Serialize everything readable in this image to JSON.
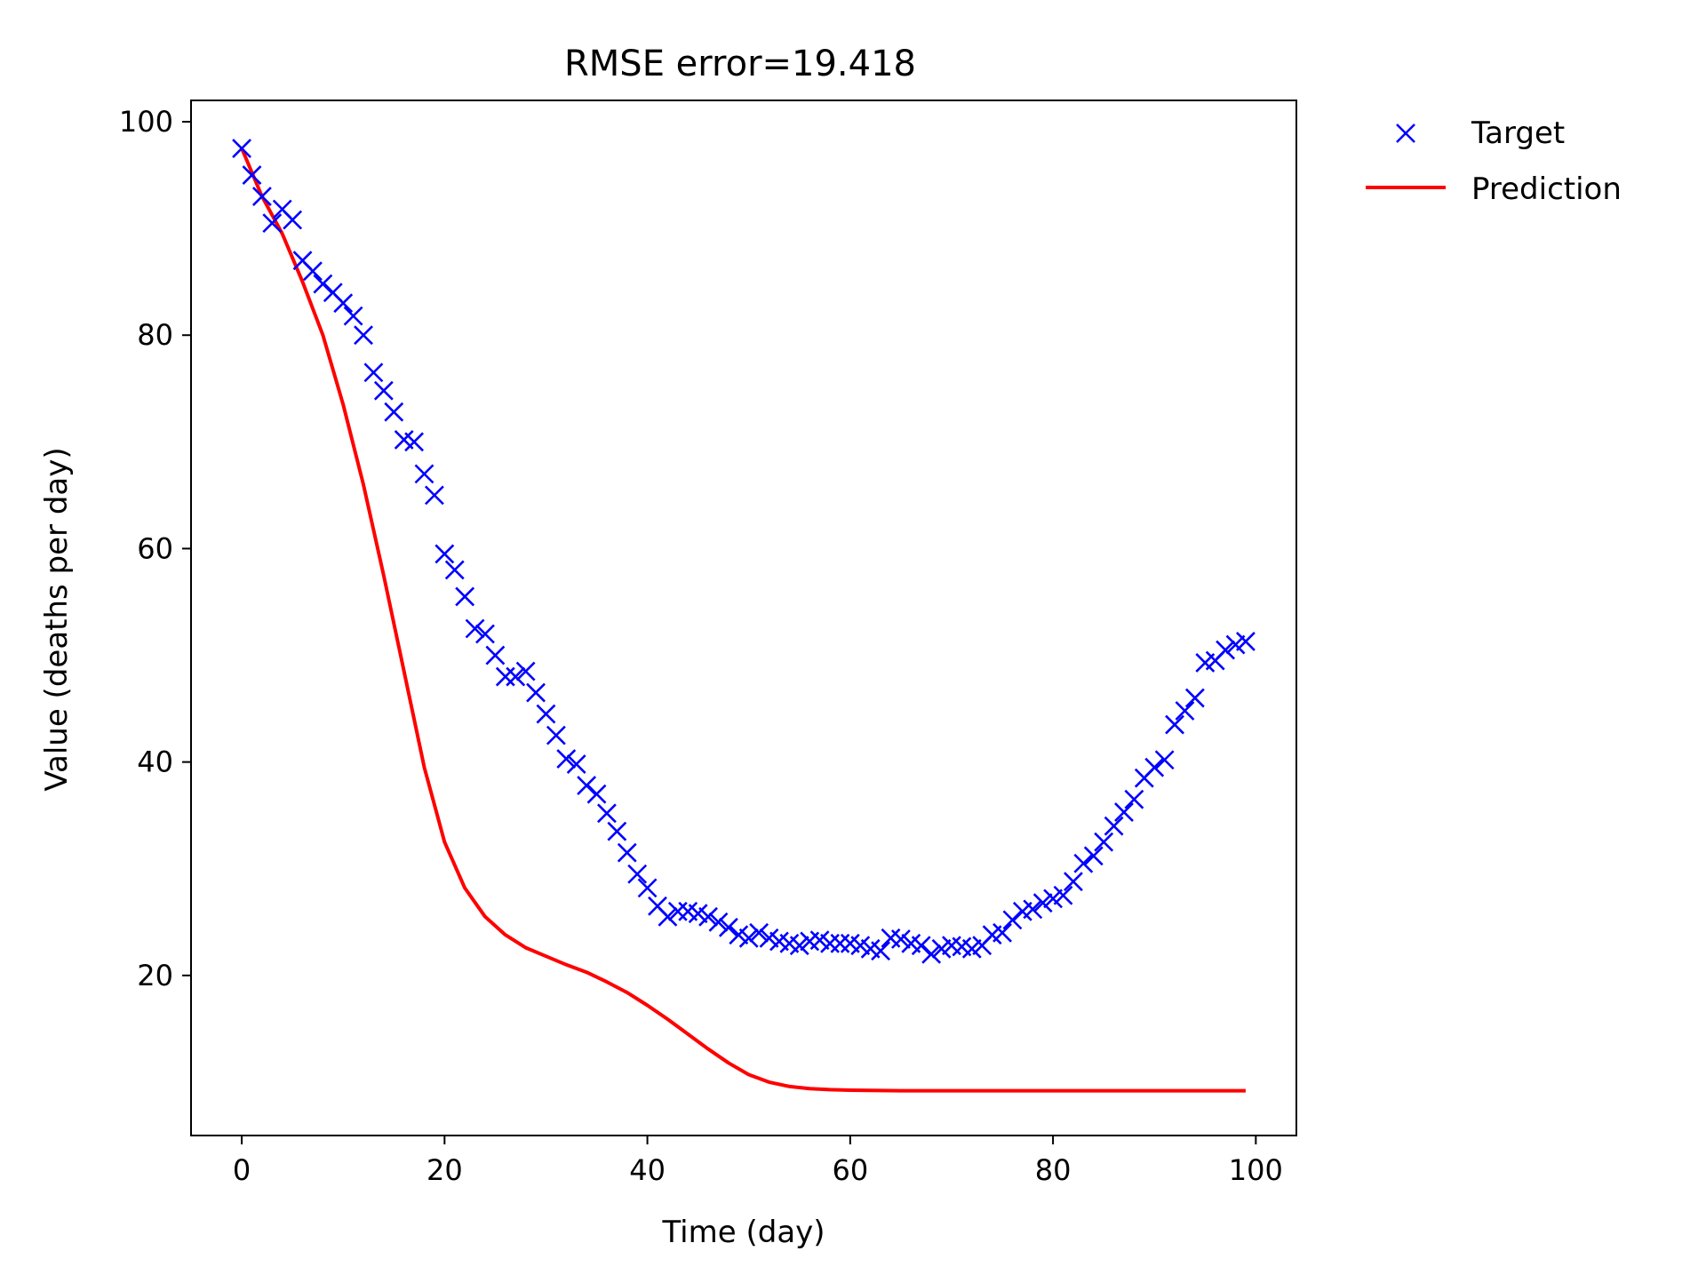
{
  "chart_data": {
    "type": "line",
    "title": "RMSE error=19.418",
    "xlabel": "Time (day)",
    "ylabel": "Value (deaths per day)",
    "xlim": [
      -5,
      104
    ],
    "ylim": [
      5,
      102
    ],
    "xticks": [
      0,
      20,
      40,
      60,
      80,
      100
    ],
    "yticks": [
      20,
      40,
      60,
      80,
      100
    ],
    "grid": false,
    "legend": {
      "placement": "outside-top-right",
      "entries": [
        "Target",
        "Prediction"
      ]
    },
    "series": [
      {
        "name": "Target",
        "style": "markers-x",
        "color": "#0000ff",
        "x": [
          0,
          1,
          2,
          3,
          4,
          5,
          6,
          7,
          8,
          9,
          10,
          11,
          12,
          13,
          14,
          15,
          16,
          17,
          18,
          19,
          20,
          21,
          22,
          23,
          24,
          25,
          26,
          27,
          28,
          29,
          30,
          31,
          32,
          33,
          34,
          35,
          36,
          37,
          38,
          39,
          40,
          41,
          42,
          43,
          44,
          45,
          46,
          47,
          48,
          49,
          50,
          51,
          52,
          53,
          54,
          55,
          56,
          57,
          58,
          59,
          60,
          61,
          62,
          63,
          64,
          65,
          66,
          67,
          68,
          69,
          70,
          71,
          72,
          73,
          74,
          75,
          76,
          77,
          78,
          79,
          80,
          81,
          82,
          83,
          84,
          85,
          86,
          87,
          88,
          89,
          90,
          91,
          92,
          93,
          94,
          95,
          96,
          97,
          98,
          99
        ],
        "y": [
          97.5,
          95,
          93,
          90.5,
          91.8,
          90.8,
          87,
          86,
          84.8,
          84,
          83,
          81.8,
          80,
          76.5,
          74.8,
          72.8,
          70.2,
          70,
          67,
          65,
          59.5,
          58,
          55.5,
          52.5,
          52,
          50,
          48,
          48,
          48.5,
          46.5,
          44.5,
          42.5,
          40.3,
          39.8,
          37.8,
          37,
          35.2,
          33.5,
          31.5,
          29.5,
          28.2,
          26.5,
          25.5,
          26,
          26,
          25.8,
          25.5,
          25,
          24.5,
          23.8,
          23.5,
          24,
          23.5,
          23.2,
          23,
          22.8,
          23.2,
          23.3,
          23,
          23,
          23,
          22.8,
          22.5,
          22.3,
          23.5,
          23.4,
          23,
          22.8,
          22,
          22.5,
          22.8,
          22.7,
          22.5,
          22.8,
          23.8,
          24,
          25.2,
          26,
          26.2,
          26.8,
          27.2,
          27.5,
          28.8,
          30.5,
          31.2,
          32.5,
          34,
          35.3,
          36.5,
          38.5,
          39.5,
          40.2,
          43.5,
          44.8,
          46,
          49.3,
          49.5,
          50.5,
          51,
          51.3
        ]
      },
      {
        "name": "Prediction",
        "style": "line",
        "color": "#ff0000",
        "x": [
          0,
          2,
          4,
          6,
          8,
          10,
          12,
          14,
          16,
          18,
          20,
          22,
          24,
          26,
          28,
          30,
          32,
          34,
          36,
          38,
          40,
          42,
          44,
          46,
          48,
          50,
          52,
          54,
          56,
          58,
          60,
          65,
          70,
          75,
          80,
          85,
          90,
          95,
          99
        ],
        "y": [
          97.5,
          93,
          89.5,
          85,
          80,
          73.5,
          66,
          57.5,
          48.5,
          39.5,
          32.5,
          28.2,
          25.5,
          23.8,
          22.6,
          21.8,
          21.0,
          20.3,
          19.4,
          18.4,
          17.2,
          15.9,
          14.5,
          13.1,
          11.8,
          10.7,
          10.0,
          9.6,
          9.4,
          9.3,
          9.25,
          9.2,
          9.2,
          9.2,
          9.2,
          9.2,
          9.2,
          9.2,
          9.2
        ]
      }
    ]
  }
}
